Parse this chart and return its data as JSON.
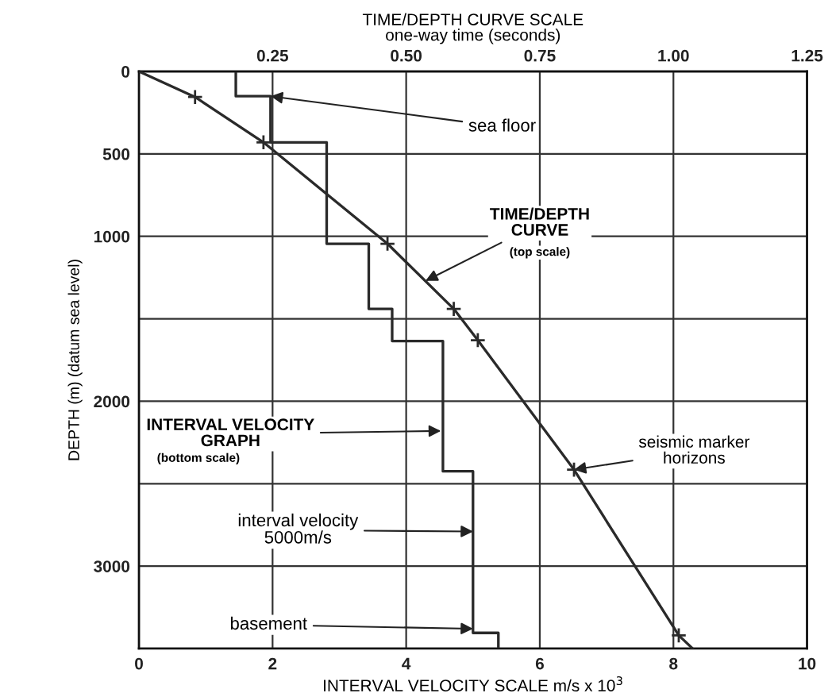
{
  "chart_data": {
    "type": "line",
    "xlabel": "INTERVAL VELOCITY SCALE m/s x 10$^{3}$",
    "ylabel": "DEPTH (m) (datum sea level)",
    "x2label": "TIME/DEPTH CURVE SCALE\none-way time (seconds)",
    "xlim": [
      0,
      10
    ],
    "xticks": [
      0,
      2,
      4,
      6,
      8,
      10
    ],
    "x2lim": [
      0,
      1.25
    ],
    "x2ticks": [
      0.25,
      {
        "value": 0.5,
        "label": "0.50"
      },
      0.75,
      {
        "value": 1.0,
        "label": "1.00"
      },
      1.25
    ],
    "ylim": [
      3500,
      0
    ],
    "yticks": [
      0,
      500,
      1000,
      {
        "value": 1500,
        "label": null
      },
      2000,
      {
        "value": 2500,
        "label": null
      },
      3000
    ],
    "grid": true,
    "series": [
      {
        "type": "line",
        "color": "#2a2a2a",
        "x": [
          1.45,
          1.45,
          1.97,
          1.97,
          2.81,
          2.81,
          3.44,
          3.44,
          3.79,
          3.79,
          4.55,
          4.55,
          5.0,
          5.0,
          5.38,
          5.38
        ],
        "values": [
          0,
          150,
          150,
          430,
          430,
          1045,
          1045,
          1440,
          1440,
          1635,
          1635,
          2425,
          2425,
          3405,
          3405,
          3500
        ]
      },
      {
        "axis": "x2",
        "color": "#2a2a2a",
        "x": [
          0,
          0.105,
          0.233,
          0.465,
          0.589,
          0.634,
          0.814,
          1.01,
          1.036
        ],
        "values": [
          0,
          155,
          430,
          1045,
          1440,
          1630,
          2415,
          3420,
          3500
        ]
      },
      {
        "type": "scatter",
        "axis": "x2",
        "marker": "cross",
        "color": "#2a2a2a",
        "x": [
          0.105,
          0.233,
          0.465,
          0.589,
          0.634,
          0.814,
          1.01
        ],
        "values": [
          155,
          430,
          1045,
          1440,
          1630,
          2415,
          3420
        ]
      }
    ],
    "annotations": [
      {
        "text": "sea floor",
        "x": 1.97,
        "y": 150
      },
      {
        "text": "TIME/DEPTH\nCURVE",
        "x": 4.29,
        "y": 1270
      },
      "(top scale)",
      {
        "text": "INTERVAL VELOCITY\nGRAPH",
        "x": 4.52,
        "y": 2180
      },
      "(bottom scale)",
      {
        "text": "seismic marker\nhorizons",
        "x": 6.51,
        "y": 2415
      },
      {
        "text": "interval velocity\n5000m/s",
        "x": 5.0,
        "y": 2790
      },
      {
        "text": "basement",
        "x": 5.0,
        "y": 3380
      }
    ]
  }
}
